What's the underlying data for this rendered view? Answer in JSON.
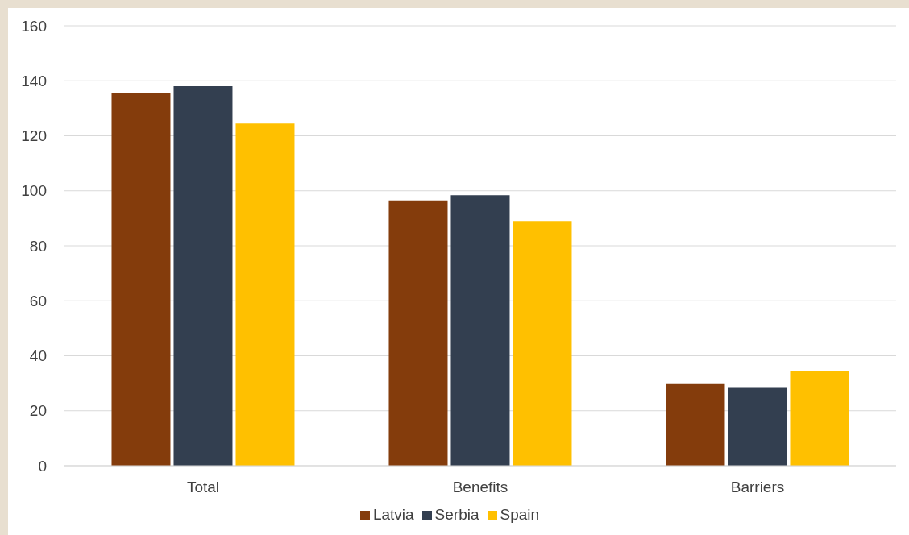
{
  "chart_data": {
    "type": "bar",
    "categories": [
      "Total",
      "Benefits",
      "Barriers"
    ],
    "series": [
      {
        "name": "Latvia",
        "color": "#843c0c",
        "values": [
          135.5,
          96.5,
          30
        ]
      },
      {
        "name": "Serbia",
        "color": "#333f50",
        "values": [
          138,
          98.4,
          28.6
        ]
      },
      {
        "name": "Spain",
        "color": "#ffc000",
        "values": [
          124.5,
          89,
          34.3
        ]
      }
    ],
    "ylim": [
      0,
      160
    ],
    "yticks": [
      0,
      20,
      40,
      60,
      80,
      100,
      120,
      140,
      160
    ],
    "grid": "y",
    "legend": "bottom"
  }
}
